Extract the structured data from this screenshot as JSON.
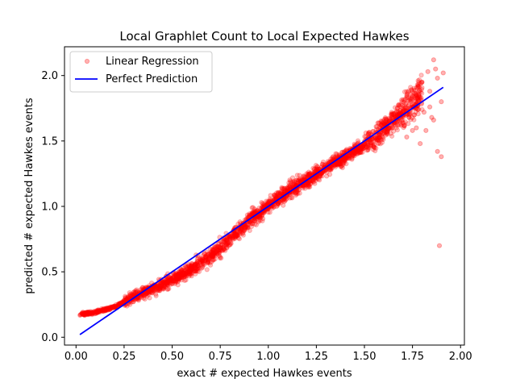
{
  "chart_data": {
    "type": "scatter",
    "title": "Local Graphlet Count to Local Expected Hawkes",
    "xlabel": "exact # expected Hawkes events",
    "ylabel": "predicted # expected Hawkes events",
    "xlim": [
      -0.06,
      2.02
    ],
    "ylim": [
      -0.06,
      2.22
    ],
    "xticks": [
      "0.00",
      "0.25",
      "0.50",
      "0.75",
      "1.00",
      "1.25",
      "1.50",
      "1.75",
      "2.00"
    ],
    "yticks": [
      "0.0",
      "0.5",
      "1.0",
      "1.5",
      "2.0"
    ],
    "grid": false,
    "legend_position": "top-left",
    "series": [
      {
        "name": "Linear Regression",
        "kind": "scatter",
        "color": "#ff0000",
        "trend": {
          "x": [
            0.02,
            0.1,
            0.2,
            0.3,
            0.4,
            0.5,
            0.6,
            0.7,
            0.8,
            0.9,
            1.0,
            1.1,
            1.2,
            1.3,
            1.4,
            1.5,
            1.55,
            1.6,
            1.65,
            1.7,
            1.75,
            1.8
          ],
          "y": [
            0.175,
            0.19,
            0.23,
            0.31,
            0.37,
            0.44,
            0.52,
            0.62,
            0.75,
            0.89,
            1.0,
            1.11,
            1.2,
            1.3,
            1.38,
            1.47,
            1.52,
            1.59,
            1.66,
            1.73,
            1.8,
            1.86
          ]
        },
        "outliers": [
          [
            1.89,
            0.7
          ],
          [
            1.9,
            1.38
          ],
          [
            1.88,
            1.42
          ],
          [
            1.82,
            1.58
          ],
          [
            1.79,
            1.48
          ],
          [
            1.85,
            1.68
          ],
          [
            1.87,
            2.05
          ],
          [
            1.86,
            2.12
          ],
          [
            1.83,
            2.03
          ],
          [
            1.8,
            1.95
          ],
          [
            1.91,
            2.02
          ],
          [
            1.84,
            1.88
          ],
          [
            1.77,
            1.6
          ],
          [
            1.75,
            1.58
          ],
          [
            1.72,
            1.53
          ],
          [
            1.81,
            1.72
          ],
          [
            1.86,
            1.66
          ],
          [
            1.9,
            1.8
          ],
          [
            1.78,
            1.92
          ],
          [
            1.74,
            1.82
          ],
          [
            1.84,
            1.76
          ],
          [
            1.69,
            1.62
          ],
          [
            1.88,
            1.98
          ],
          [
            1.76,
            1.7
          ]
        ]
      },
      {
        "name": "Perfect Prediction",
        "kind": "line",
        "color": "#0000ff",
        "x": [
          0.02,
          1.91
        ],
        "y": [
          0.02,
          1.91
        ]
      }
    ]
  }
}
